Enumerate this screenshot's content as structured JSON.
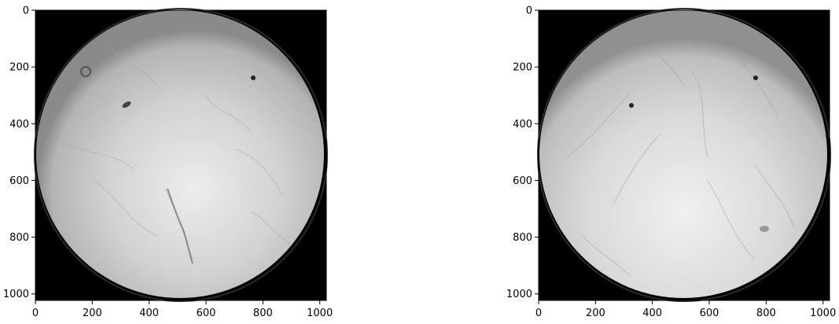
{
  "chart_data": [
    {
      "type": "image",
      "title": "",
      "xlabel": "",
      "ylabel": "",
      "xlim": [
        0,
        1023
      ],
      "ylim": [
        1023,
        0
      ],
      "xticks": [
        0,
        200,
        400,
        600,
        800,
        1000
      ],
      "yticks": [
        0,
        200,
        400,
        600,
        800,
        1000
      ],
      "content": "grayscale circular microscope field (bright disk on black background)",
      "features": [
        {
          "kind": "dark-spot",
          "x": 765,
          "y": 240
        },
        {
          "kind": "dark-spot",
          "x": 320,
          "y": 335
        },
        {
          "kind": "ring-spot",
          "x": 175,
          "y": 215
        }
      ]
    },
    {
      "type": "image",
      "title": "",
      "xlabel": "",
      "ylabel": "",
      "xlim": [
        0,
        1023
      ],
      "ylim": [
        1023,
        0
      ],
      "xticks": [
        0,
        200,
        400,
        600,
        800,
        1000
      ],
      "yticks": [
        0,
        200,
        400,
        600,
        800,
        1000
      ],
      "content": "grayscale circular microscope field (bright disk on black background)",
      "features": [
        {
          "kind": "dark-spot",
          "x": 765,
          "y": 240
        },
        {
          "kind": "dark-spot",
          "x": 325,
          "y": 340
        },
        {
          "kind": "smudge",
          "x": 790,
          "y": 780
        }
      ]
    }
  ],
  "colors": {
    "background": "#000000",
    "disk_center": "#e6e6e6",
    "disk_edge": "#9a9a9a",
    "axis": "#000000"
  }
}
